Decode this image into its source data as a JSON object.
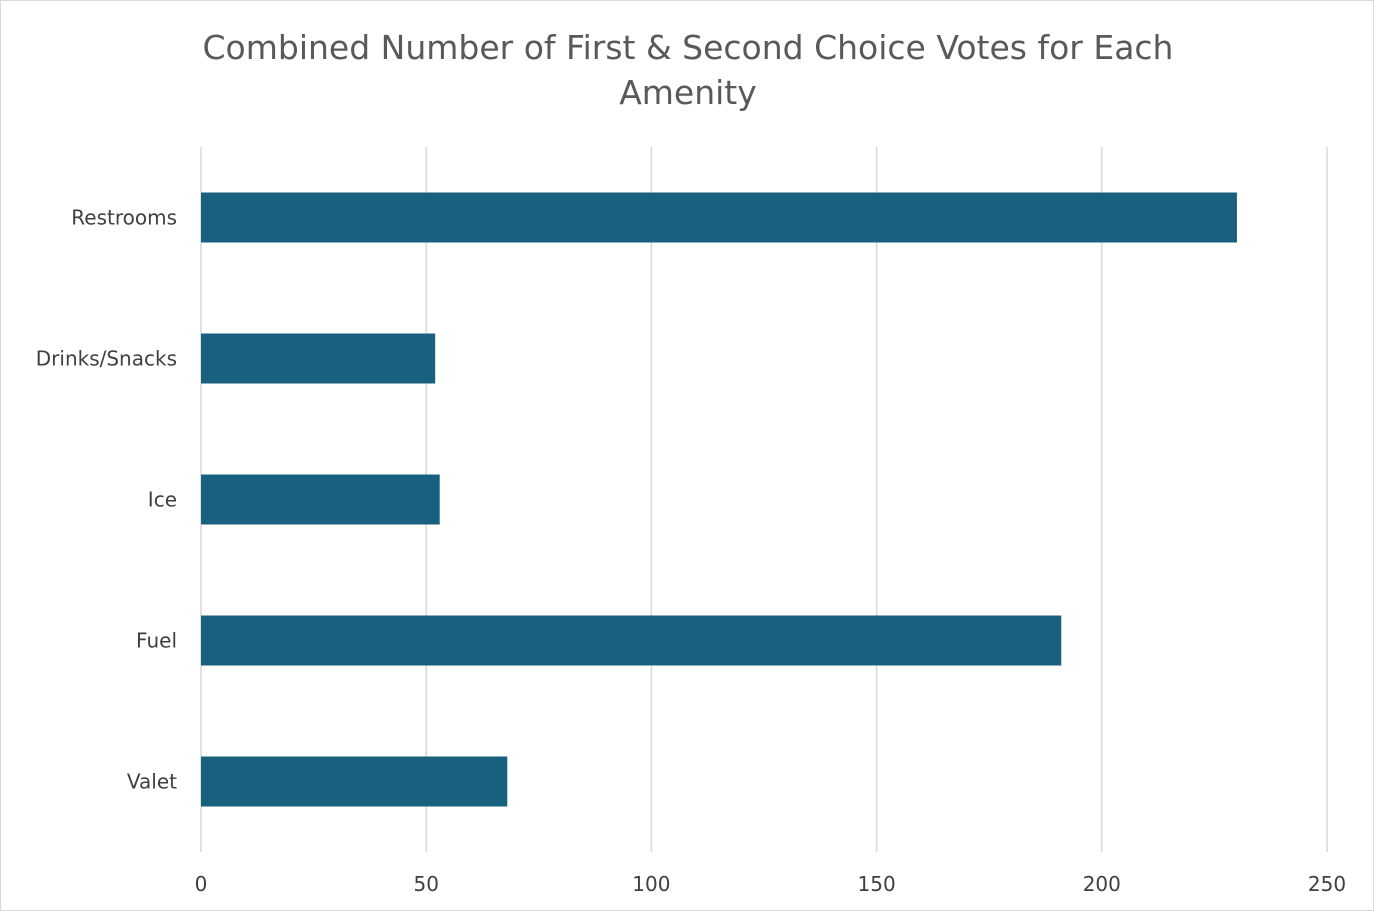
{
  "chart_data": {
    "type": "bar",
    "orientation": "horizontal",
    "title": "Combined Number of First & Second Choice Votes for Each Amenity",
    "categories": [
      "Restrooms",
      "Drinks/Snacks",
      "Ice",
      "Fuel",
      "Valet"
    ],
    "values": [
      230,
      52,
      53,
      191,
      68
    ],
    "xlim": [
      0,
      250
    ],
    "x_ticks": [
      "0",
      "50",
      "100",
      "150",
      "200",
      "250"
    ],
    "xlabel": "",
    "ylabel": "",
    "grid": "vertical",
    "legend": "none",
    "bar_color": "#17607f",
    "grid_color": "#d9d9d9"
  }
}
